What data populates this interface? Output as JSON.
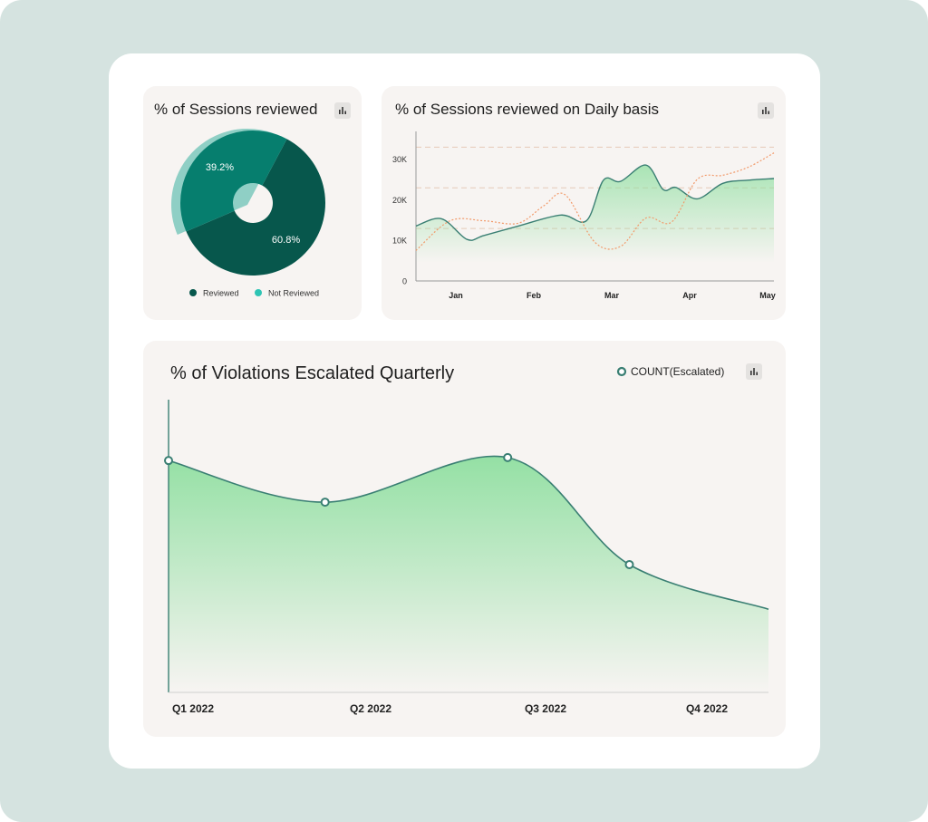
{
  "colors": {
    "frame": "#d5e3e0",
    "board": "#ffffff",
    "card": "#f7f4f2",
    "reviewed": "#07574c",
    "not_reviewed": "#067e6e",
    "not_reviewed_legend": "#2ec4b4",
    "pie_shadow": "#7cc8bd",
    "line": "#3a7f73",
    "orange": "#f29a6a",
    "area_green": "#8fdfa0",
    "grid_dash": "#e6c9b8"
  },
  "pie_card": {
    "title": "% of Sessions reviewed",
    "icon": "bar-chart-icon"
  },
  "daily_card": {
    "title": "% of Sessions reviewed on Daily basis",
    "icon": "bar-chart-icon"
  },
  "quarterly_card": {
    "title": "% of Violations Escalated Quarterly",
    "icon": "bar-chart-icon"
  },
  "chart_data": [
    {
      "type": "pie",
      "title": "% of Sessions reviewed",
      "slices": [
        {
          "label": "Reviewed",
          "value": 60.8,
          "display": "60.8%"
        },
        {
          "label": "Not Reviewed",
          "value": 39.2,
          "display": "39.2%"
        }
      ],
      "donut": true,
      "legend": "bottom"
    },
    {
      "type": "line",
      "title": "% of Sessions reviewed on Daily basis",
      "x_ticks": [
        "Jan",
        "Feb",
        "Mar",
        "Apr",
        "May"
      ],
      "y_ticks": [
        "0",
        "10K",
        "20K",
        "30K"
      ],
      "ylim": [
        0,
        35000
      ],
      "grid": "dashed-horizontal",
      "series": [
        {
          "style": "solid-area",
          "x": [
            0,
            0.3,
            0.6,
            0.8,
            1.2,
            1.7,
            2.0,
            2.2,
            2.4,
            2.7,
            2.9,
            3.05,
            3.3,
            3.6,
            3.9,
            4.2
          ],
          "values": [
            13500,
            15300,
            10200,
            11200,
            13500,
            16200,
            14800,
            24800,
            24500,
            28500,
            22500,
            23000,
            20200,
            24000,
            24800,
            25200
          ]
        },
        {
          "style": "dotted",
          "x": [
            0,
            0.4,
            0.8,
            1.2,
            1.5,
            1.75,
            2.1,
            2.4,
            2.7,
            3.0,
            3.3,
            3.6,
            3.9,
            4.2
          ],
          "values": [
            7500,
            14800,
            14800,
            14200,
            18500,
            21200,
            9500,
            8500,
            15500,
            14500,
            25000,
            26000,
            28000,
            31500
          ]
        }
      ]
    },
    {
      "type": "area",
      "title": "% of Violations Escalated Quarterly",
      "categories": [
        "Q1 2022",
        "Q2 2022",
        "Q3 2022",
        "Q4 2022"
      ],
      "legend": "top-right",
      "series": [
        {
          "name": "COUNT(Escalated)",
          "x": [
            0,
            0.9,
            1.95,
            2.65,
            3.45
          ],
          "values": [
            78,
            64,
            79,
            43,
            28
          ],
          "markers": [
            true,
            true,
            true,
            true,
            false
          ]
        }
      ],
      "ylim": [
        0,
        100
      ]
    }
  ]
}
